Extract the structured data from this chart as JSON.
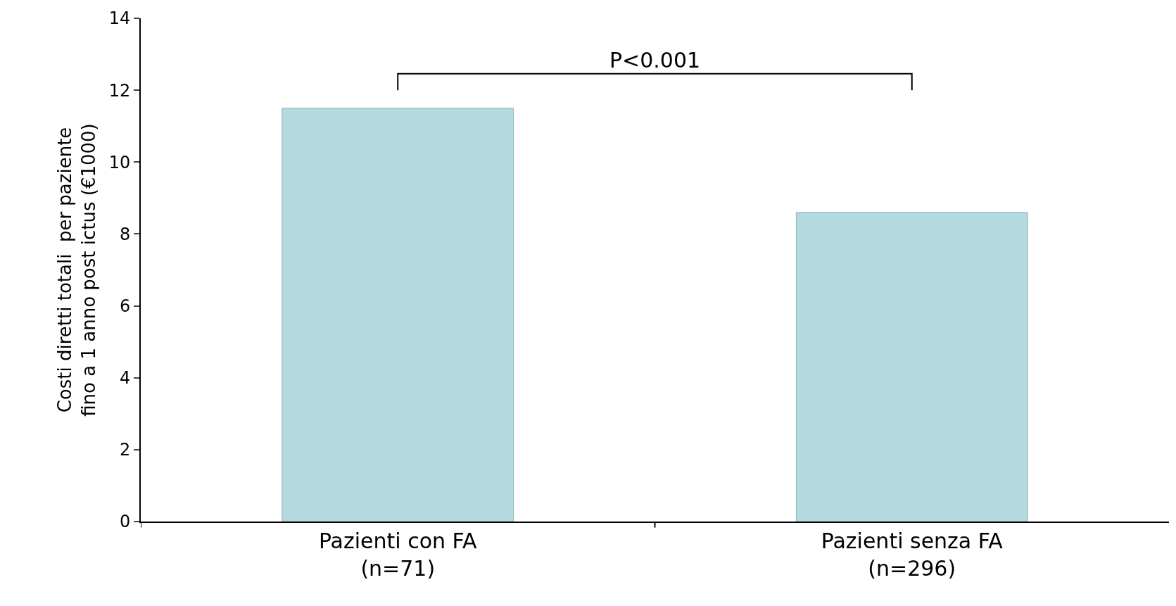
{
  "chart_data": {
    "type": "bar",
    "ylabel": "Costi diretti totali  per paziente\nfino a 1 anno post ictus (€1000)",
    "categories": [
      "Pazienti con FA\n(n=71)",
      "Pazienti senza FA\n(n=296)"
    ],
    "values": [
      11.5,
      8.6
    ],
    "color": "#b4d9de",
    "ylim": [
      0,
      14
    ],
    "yticks": [
      0,
      2,
      4,
      6,
      8,
      10,
      12,
      14
    ],
    "annotations": [
      "P<0.001"
    ]
  }
}
